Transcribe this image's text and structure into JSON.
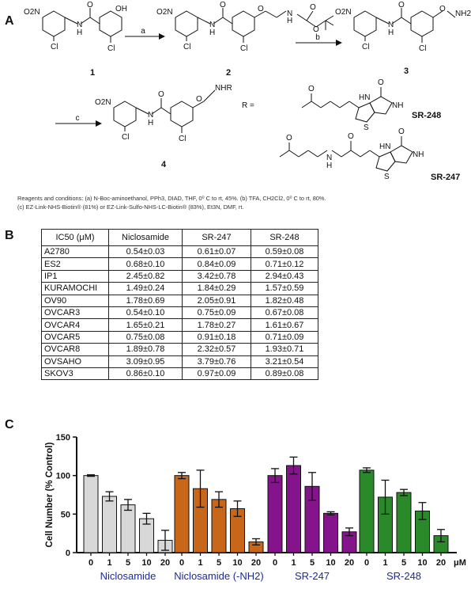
{
  "panels": {
    "a": "A",
    "b": "B",
    "c": "C"
  },
  "scheme": {
    "compounds": [
      "1",
      "2",
      "3",
      "4"
    ],
    "arrows": [
      "a",
      "b",
      "c"
    ],
    "groups": {
      "nitro": "O2N",
      "oh": "OH",
      "cl": "Cl",
      "nh": "N",
      "h": "H",
      "o": "O",
      "nh2": "NH2",
      "nhr": "NHR",
      "r_eq": "R =",
      "s": "S",
      "hn": "HN",
      "nh_ring": "NH"
    },
    "names": [
      "SR-248",
      "SR-247"
    ],
    "reagents": [
      "Reagents and conditions: (a) N-Boc-aminoethanol, PPh3, DIAD, THF, 0⁰ C to rt, 45%. (b) TFA, CH2Cl2, 0⁰ C to rt, 80%.",
      "(c) EZ-Link-NHS-Biotin® (81%) or EZ-Link-Sulfo-NHS-LC-Biotin® (83%), Et3N, DMF, rt."
    ]
  },
  "table": {
    "header": [
      "IC50 (μM)",
      "Niclosamide",
      "SR-247",
      "SR-248"
    ],
    "rows": [
      [
        "A2780",
        "0.54±0.03",
        "0.61±0.07",
        "0.59±0.08"
      ],
      [
        "ES2",
        "0.68±0.10",
        "0.84±0.09",
        "0.71±0.12"
      ],
      [
        "IP1",
        "2.45±0.82",
        "3.42±0.78",
        "2.94±0.43"
      ],
      [
        "KURAMOCHI",
        "1.49±0.24",
        "1.84±0.29",
        "1.57±0.59"
      ],
      [
        "OV90",
        "1.78±0.69",
        "2.05±0.91",
        "1.82±0.48"
      ],
      [
        "OVCAR3",
        "0.54±0.10",
        "0.75±0.09",
        "0.67±0.08"
      ],
      [
        "OVCAR4",
        "1.65±0.21",
        "1.78±0.27",
        "1.61±0.67"
      ],
      [
        "OVCAR5",
        "0.75±0.08",
        "0.91±0.18",
        "0.71±0.09"
      ],
      [
        "OVCAR8",
        "1.89±0.78",
        "2.32±0.57",
        "1.93±0.71"
      ],
      [
        "OVSAHO",
        "3.09±0.95",
        "3.79±0.76",
        "3.21±0.54"
      ],
      [
        "SKOV3",
        "0.86±0.10",
        "0.97±0.09",
        "0.89±0.08"
      ]
    ]
  },
  "chart_data": {
    "type": "bar",
    "ylabel": "Cell Number (% Control)",
    "ylim": [
      0,
      150
    ],
    "yticks": [
      0,
      50,
      100,
      150
    ],
    "unit_label": "μM",
    "concentrations": [
      "0",
      "1",
      "5",
      "10",
      "20"
    ],
    "groups": [
      {
        "name": "Niclosamide",
        "color": "#d8d8d8",
        "values": [
          100,
          73,
          62,
          44,
          16
        ],
        "errors": [
          1,
          6,
          7,
          7,
          13
        ]
      },
      {
        "name": "Niclosamide (-NH2)",
        "color": "#c8661a",
        "values": [
          100,
          83,
          69,
          57,
          14
        ],
        "errors": [
          4,
          24,
          10,
          10,
          4
        ]
      },
      {
        "name": "SR-247",
        "color": "#85148c",
        "values": [
          100,
          113,
          86,
          51,
          27
        ],
        "errors": [
          9,
          11,
          18,
          2,
          5
        ]
      },
      {
        "name": "SR-248",
        "color": "#2a8a2a",
        "values": [
          107,
          72,
          78,
          54,
          22
        ],
        "errors": [
          3,
          22,
          4,
          11,
          8
        ]
      }
    ],
    "group_label_color": "#1c2aa0"
  }
}
